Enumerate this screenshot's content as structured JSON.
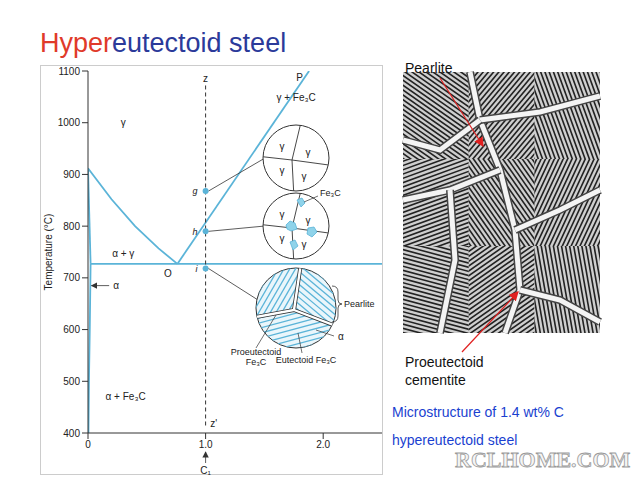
{
  "title": [
    {
      "text": "Hyper",
      "color": "#e03a2a"
    },
    {
      "text": "eutectoid steel",
      "color": "#2b3a9a"
    }
  ],
  "chart_data": {
    "type": "line",
    "y_label": "Temperature (°C)",
    "xlim": [
      0,
      2.5
    ],
    "xticks": [
      0,
      {
        "value": 1,
        "label": "1.0"
      },
      {
        "value": 2,
        "label": "2.0"
      }
    ],
    "ylim": [
      400,
      1100
    ],
    "yticks": [
      400,
      500,
      600,
      700,
      800,
      900,
      1000,
      1100
    ],
    "color": "#5bb4d8",
    "series": [
      {
        "color": "#5bb4d8",
        "line_style": "solid",
        "x": [
          0,
          0.2,
          0.4,
          0.6,
          0.76
        ],
        "values": [
          912,
          852,
          800,
          757,
          727
        ]
      },
      {
        "color": "#5bb4d8",
        "line_style": "solid",
        "x": [
          0.76,
          1.88
        ],
        "values": [
          727,
          1100
        ]
      },
      {
        "color": "#5bb4d8",
        "line_style": "solid",
        "x": [
          0.022,
          2.5
        ],
        "values": [
          727,
          727
        ]
      },
      {
        "color": "#5bb4d8",
        "line_style": "solid",
        "x": [
          0,
          0.022
        ],
        "values": [
          912,
          727
        ]
      },
      {
        "color": "#5bb4d8",
        "line_style": "solid",
        "x": [
          0.022,
          0.015,
          0.008,
          0.004
        ],
        "values": [
          727,
          600,
          500,
          400
        ]
      },
      {
        "color": "#333333",
        "line_style": "dashed",
        "x": [
          1.0,
          1.0
        ],
        "values": [
          1072,
          410
        ]
      }
    ],
    "points": [
      {
        "label": "g",
        "x": 1.0,
        "y": 868
      },
      {
        "label": "h",
        "x": 1.0,
        "y": 790
      },
      {
        "label": "i",
        "x": 1.0,
        "y": 718
      }
    ],
    "annotations": [
      {
        "text": "γ",
        "x": 0.3,
        "y": 1000
      },
      {
        "text": "γ + Fe₃C",
        "x": 1.77,
        "y": 1048
      },
      {
        "text": "P",
        "x": 1.8,
        "y": 1088
      },
      {
        "text": "z",
        "x": 1.0,
        "y": 1085
      },
      {
        "text": "z'",
        "x": 1.07,
        "y": 418
      },
      {
        "text": "α + γ",
        "x": 0.3,
        "y": 748
      },
      {
        "text": "O",
        "x": 0.68,
        "y": 708
      },
      {
        "text": "α",
        "x": 0.24,
        "y": 685
      },
      {
        "text": "α + Fe₃C",
        "x": 0.32,
        "y": 470
      }
    ],
    "x_marker": {
      "label": "C₁",
      "x": 1.0
    }
  },
  "insets": [
    {
      "point": "g",
      "grain_labels": [
        "γ",
        "γ",
        "γ",
        "γ"
      ]
    },
    {
      "point": "h",
      "grain_labels": [
        "γ",
        "γ",
        "γ",
        "γ"
      ],
      "callout": "Fe₃C"
    },
    {
      "point": "i",
      "callouts": [
        "Pearlite",
        "Proeutectoid Fe₃C",
        "Eutectoid Fe₃C",
        "α"
      ]
    }
  ],
  "micrograph": {
    "labels": [
      "Pearlite",
      "Proeutectoid cementite"
    ],
    "caption": [
      "Microstructure of 1.4 wt% C",
      "hypereutectoid steel"
    ],
    "watermark": "RCLHOME.COM"
  }
}
